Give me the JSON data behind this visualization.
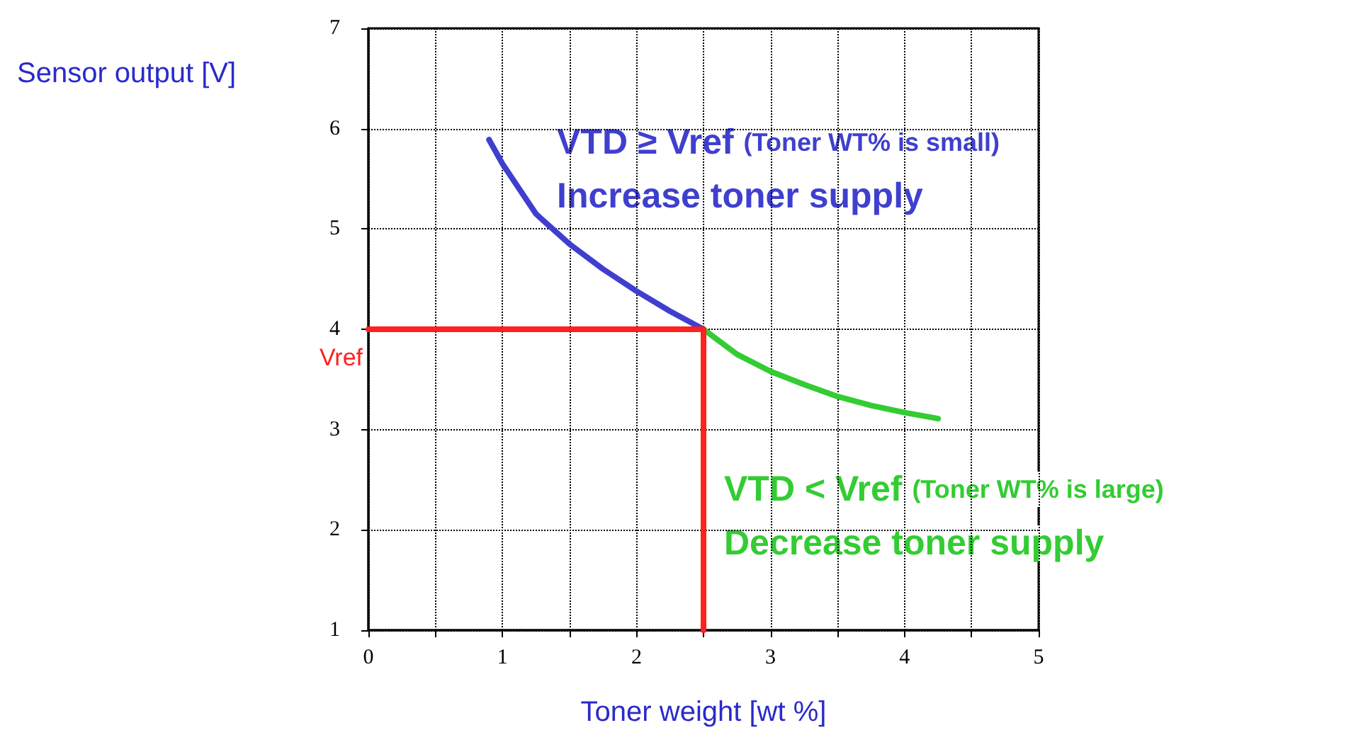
{
  "chart_data": {
    "type": "line",
    "xlabel": "Toner weight [wt %]",
    "ylabel": "Sensor output [V]",
    "xlim": [
      0,
      5
    ],
    "xticks": [
      0,
      {
        "value": 0.5,
        "label": null
      },
      1,
      {
        "value": 1.5,
        "label": null
      },
      2,
      {
        "value": 2.5,
        "label": null
      },
      3,
      {
        "value": 3.5,
        "label": null
      },
      4,
      {
        "value": 4.5,
        "label": null
      },
      5
    ],
    "ylim": [
      1,
      7
    ],
    "yticks": [
      1,
      2,
      3,
      4,
      5,
      6,
      7
    ],
    "grid": true,
    "series": [
      {
        "color": "#3f3fcf",
        "x": [
          0.9,
          1.0,
          1.25,
          1.5,
          1.75,
          2.0,
          2.25,
          2.5
        ],
        "values": [
          5.89,
          5.65,
          5.15,
          4.85,
          4.6,
          4.38,
          4.18,
          4.0
        ]
      },
      {
        "color": "#33cc33",
        "x": [
          2.5,
          2.75,
          3.0,
          3.25,
          3.5,
          3.75,
          4.0,
          4.25
        ],
        "values": [
          4.0,
          3.75,
          3.58,
          3.45,
          3.33,
          3.24,
          3.17,
          3.11
        ]
      },
      {
        "name": "Vref",
        "color": "#ff2020",
        "x": [
          0,
          2.5,
          2.5
        ],
        "values": [
          4,
          4,
          1
        ]
      }
    ],
    "annotations": [
      "VTD ≥ Vref (Toner WT% is small)",
      "Increase toner supply",
      "VTD < Vref (Toner WT% is large)",
      "Decrease toner supply"
    ]
  }
}
